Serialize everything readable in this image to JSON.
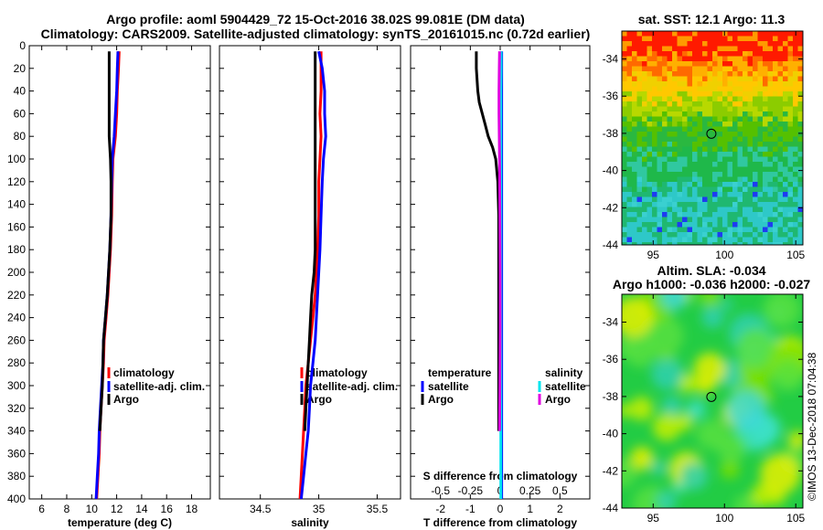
{
  "title_line1": "Argo profile: aoml 5904429_72 15-Oct-2016 38.02S 99.081E (DM data)",
  "title_line2": "Climatology: CARS2009. Satellite-adjusted climatology: synTS_20161015.nc (0.72d earlier)",
  "sst_title": "sat. SST: 12.1 Argo: 11.3",
  "sla_title1": "Altim. SLA: -0.034",
  "sla_title2": "Argo h1000: -0.036 h2000: -0.027",
  "credit": "©IMOS 13-Dec-2018 07:04:38",
  "colors": {
    "climatology": "#ff0000",
    "satellite_adj": "#0000ff",
    "argo": "#000000",
    "sal_satellite": "#00e5ee",
    "sal_argo": "#e000e0"
  },
  "chart_data": [
    {
      "type": "line",
      "name": "temperature",
      "xlabel": "temperature (deg C)",
      "ylabel": "",
      "xlim": [
        5,
        19.5
      ],
      "ylim": [
        400,
        0
      ],
      "xticks": [
        6,
        8,
        10,
        12,
        14,
        16,
        18
      ],
      "yticks": [
        0,
        20,
        40,
        60,
        80,
        100,
        120,
        140,
        160,
        180,
        200,
        220,
        240,
        260,
        280,
        300,
        320,
        340,
        360,
        380,
        400
      ],
      "legend": [
        "climatology",
        "satellite-adj. clim.",
        "Argo"
      ],
      "legend_position": "lower-right",
      "series": [
        {
          "name": "climatology",
          "color": "#ff0000",
          "depth": [
            5,
            20,
            40,
            60,
            80,
            100,
            120,
            150,
            180,
            200,
            220,
            240,
            260,
            280,
            300,
            320,
            340,
            360,
            380,
            400
          ],
          "values": [
            12.2,
            12.15,
            12.05,
            12.0,
            11.9,
            11.7,
            11.65,
            11.6,
            11.5,
            11.4,
            11.3,
            11.15,
            11.0,
            10.95,
            10.85,
            10.75,
            10.65,
            10.6,
            10.5,
            10.4
          ]
        },
        {
          "name": "satellite-adj. clim.",
          "color": "#0000ff",
          "depth": [
            5,
            20,
            40,
            60,
            80,
            100,
            120,
            150,
            180,
            200,
            220,
            240,
            260,
            280,
            300,
            320,
            340,
            360,
            380,
            400
          ],
          "values": [
            12.1,
            12.05,
            12.0,
            11.9,
            11.8,
            11.65,
            11.6,
            11.55,
            11.45,
            11.35,
            11.25,
            11.1,
            10.95,
            10.9,
            10.8,
            10.7,
            10.6,
            10.55,
            10.45,
            10.35
          ]
        },
        {
          "name": "Argo",
          "color": "#000000",
          "depth": [
            5,
            20,
            40,
            60,
            80,
            90,
            100,
            120,
            150,
            180,
            200,
            220,
            240,
            260,
            280,
            300,
            320,
            340
          ],
          "values": [
            11.4,
            11.4,
            11.4,
            11.4,
            11.4,
            11.45,
            11.5,
            11.55,
            11.55,
            11.45,
            11.35,
            11.25,
            11.1,
            10.95,
            10.9,
            10.85,
            10.75,
            10.65
          ]
        }
      ]
    },
    {
      "type": "line",
      "name": "salinity",
      "xlabel": "salinity",
      "ylabel": "",
      "xlim": [
        34.15,
        35.7
      ],
      "ylim": [
        400,
        0
      ],
      "xticks": [
        34.5,
        35,
        35.5
      ],
      "legend": [
        "climatology",
        "satellite-adj. clim.",
        "Argo"
      ],
      "legend_position": "lower-right",
      "series": [
        {
          "name": "climatology",
          "color": "#ff0000",
          "depth": [
            5,
            20,
            40,
            60,
            80,
            100,
            120,
            150,
            180,
            200,
            220,
            240,
            260,
            280,
            300,
            320,
            340,
            360,
            380,
            400
          ],
          "values": [
            35.02,
            35.02,
            35.02,
            35.01,
            35.02,
            35.01,
            35.0,
            35.0,
            34.99,
            34.98,
            34.97,
            34.95,
            34.93,
            34.91,
            34.89,
            34.88,
            34.87,
            34.86,
            34.85,
            34.84
          ]
        },
        {
          "name": "satellite-adj. clim.",
          "color": "#0000ff",
          "depth": [
            5,
            20,
            40,
            60,
            80,
            100,
            120,
            150,
            180,
            200,
            220,
            240,
            260,
            280,
            300,
            320,
            340,
            360,
            380,
            400
          ],
          "values": [
            35.0,
            35.03,
            35.05,
            35.05,
            35.06,
            35.04,
            35.03,
            35.02,
            35.01,
            35.0,
            34.99,
            34.98,
            34.97,
            34.95,
            34.93,
            34.92,
            34.91,
            34.89,
            34.87,
            34.85
          ]
        },
        {
          "name": "Argo",
          "color": "#000000",
          "depth": [
            5,
            20,
            40,
            60,
            80,
            100,
            120,
            150,
            180,
            200,
            220,
            240,
            260,
            280,
            300,
            320,
            340
          ],
          "values": [
            34.97,
            34.97,
            34.97,
            34.97,
            34.97,
            34.97,
            34.97,
            34.97,
            34.97,
            34.96,
            34.94,
            34.93,
            34.92,
            34.91,
            34.9,
            34.89,
            34.88
          ]
        }
      ]
    },
    {
      "type": "line",
      "name": "difference from climatology",
      "xlabel": "T difference from climatology",
      "xlabel_top": "S difference from climatology",
      "xlim": [
        -3,
        3
      ],
      "ylim": [
        400,
        0
      ],
      "xticks": [
        -2,
        -1,
        0,
        1,
        2
      ],
      "xticks_s": [
        "-0.5",
        "-0.25",
        "0",
        "0.25",
        "0.5"
      ],
      "legend_temperature_title": "temperature",
      "legend_salinity_title": "salinity",
      "legend_temperature": [
        "satellite",
        "Argo"
      ],
      "legend_salinity": [
        "satellite",
        "Argo"
      ],
      "legend_position": "lower",
      "series": [
        {
          "name": "T satellite",
          "color": "#0000ff",
          "depth": [
            5,
            20,
            40,
            60,
            80,
            100,
            150,
            200,
            250,
            300,
            350,
            400
          ],
          "values": [
            0.05,
            0.05,
            0.05,
            0.05,
            0.05,
            0.05,
            0.05,
            0.05,
            0.05,
            0.05,
            0.05,
            0.05
          ]
        },
        {
          "name": "T Argo",
          "color": "#000000",
          "depth": [
            5,
            20,
            40,
            50,
            60,
            70,
            80,
            90,
            100,
            120,
            150,
            200,
            250,
            300,
            340
          ],
          "values": [
            -0.8,
            -0.8,
            -0.75,
            -0.7,
            -0.6,
            -0.5,
            -0.4,
            -0.25,
            -0.15,
            -0.08,
            -0.05,
            -0.05,
            -0.05,
            -0.05,
            -0.05
          ]
        },
        {
          "name": "S satellite",
          "color": "#00e5ee",
          "depth": [
            5,
            20,
            40,
            60,
            80,
            100,
            150,
            200,
            250,
            300,
            350,
            400
          ],
          "values": [
            0.03,
            0.03,
            0.02,
            0.02,
            0.02,
            0.02,
            0.02,
            0.02,
            0.02,
            0.02,
            0.02,
            0.02
          ]
        },
        {
          "name": "S Argo",
          "color": "#e000e0",
          "depth": [
            5,
            20,
            40,
            60,
            80,
            100,
            150,
            200,
            250,
            300,
            340
          ],
          "values": [
            -0.02,
            -0.03,
            -0.04,
            -0.04,
            -0.03,
            -0.02,
            -0.01,
            0.0,
            0.0,
            -0.01,
            -0.02
          ]
        }
      ]
    },
    {
      "type": "heatmap",
      "name": "sat. SST map",
      "title": "sat. SST: 12.1 Argo: 11.3",
      "xlim": [
        92.8,
        105.5
      ],
      "ylim": [
        -44,
        -32.5
      ],
      "xticks": [
        95,
        100,
        105
      ],
      "yticks": [
        -34,
        -36,
        -38,
        -40,
        -42,
        -44
      ],
      "marker": {
        "lon": 99.081,
        "lat": -38.02
      }
    },
    {
      "type": "heatmap",
      "name": "altimetry SLA map",
      "title": "Altim. SLA: -0.034",
      "xlim": [
        92.8,
        105.5
      ],
      "ylim": [
        -44,
        -32.5
      ],
      "xticks": [
        95,
        100,
        105
      ],
      "yticks": [
        -34,
        -36,
        -38,
        -40,
        -42,
        -44
      ],
      "marker": {
        "lon": 99.081,
        "lat": -38.02
      }
    }
  ]
}
